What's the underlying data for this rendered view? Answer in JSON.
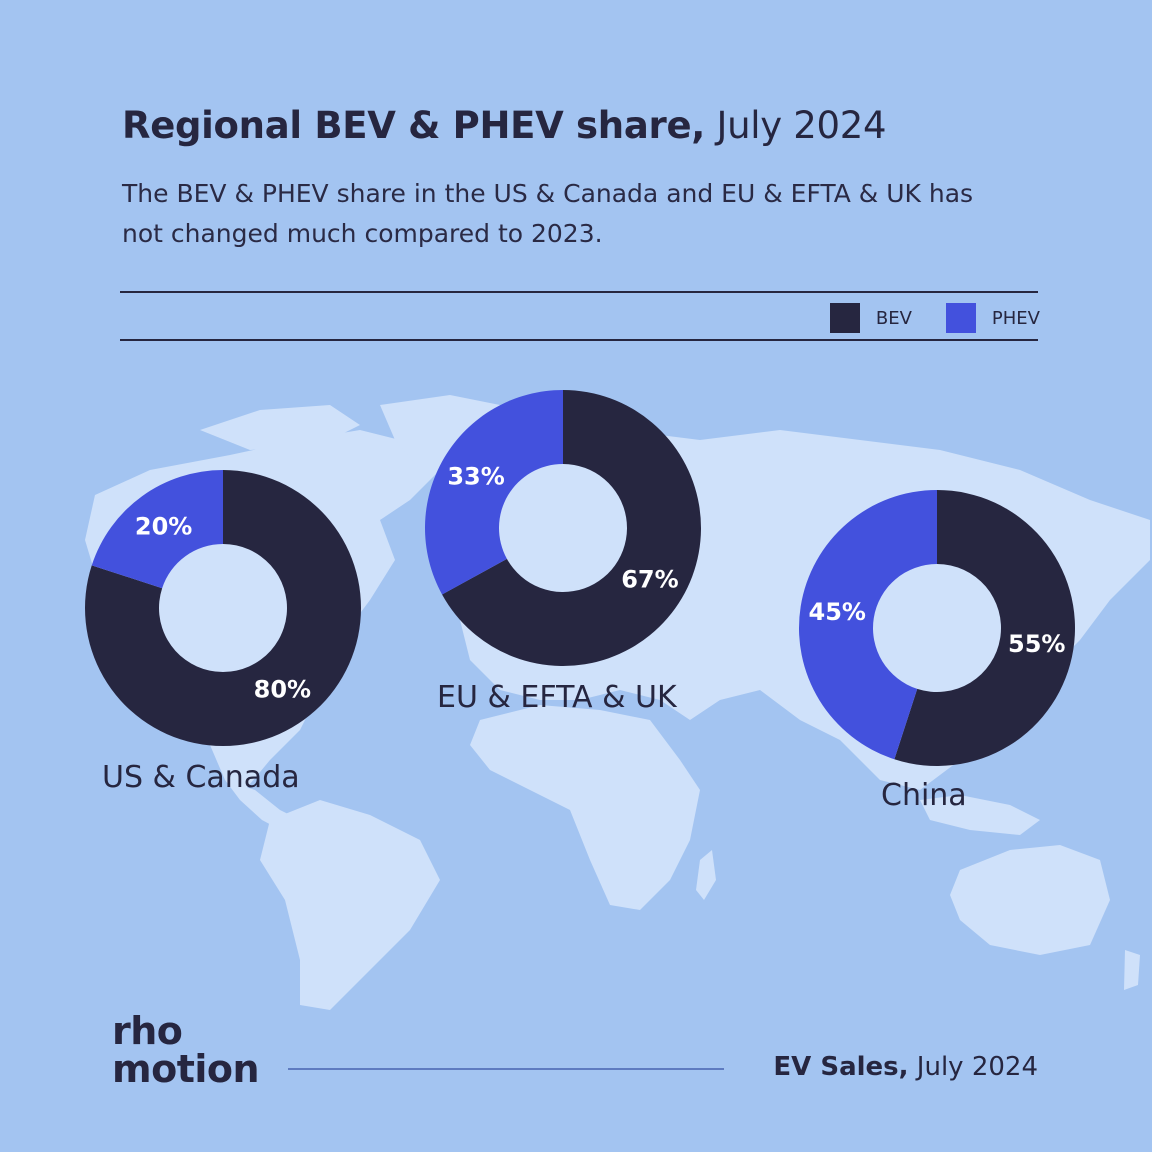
{
  "header": {
    "title_bold": "Regional BEV & PHEV share,",
    "title_light": "July 2024",
    "subtitle": "The BEV & PHEV share in the US & Canada and EU & EFTA & UK has not changed much compared to 2023."
  },
  "legend": {
    "items": [
      {
        "label": "BEV",
        "color": "#262640"
      },
      {
        "label": "PHEV",
        "color": "#4351dd"
      }
    ]
  },
  "colors": {
    "background": "#a3c4f1",
    "map_land": "#cfe1fa",
    "bev": "#262640",
    "phev": "#4351dd"
  },
  "chart_data": [
    {
      "type": "pie",
      "title": "US & Canada",
      "categories": [
        "BEV",
        "PHEV"
      ],
      "values": [
        80,
        20
      ],
      "labels": [
        "80%",
        "20%"
      ]
    },
    {
      "type": "pie",
      "title": "EU & EFTA & UK",
      "categories": [
        "BEV",
        "PHEV"
      ],
      "values": [
        67,
        33
      ],
      "labels": [
        "67%",
        "33%"
      ]
    },
    {
      "type": "pie",
      "title": "China",
      "categories": [
        "BEV",
        "PHEV"
      ],
      "values": [
        55,
        45
      ],
      "labels": [
        "55%",
        "45%"
      ]
    }
  ],
  "footer": {
    "logo_line1": "rho",
    "logo_line2": "motion",
    "source_bold": "EV Sales,",
    "source_light": "July 2024"
  }
}
